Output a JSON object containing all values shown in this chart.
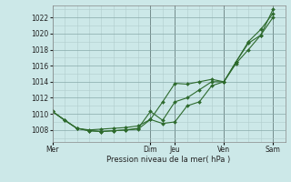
{
  "background_color": "#cce8e8",
  "grid_color_minor": "#b0cccc",
  "grid_color_major": "#88aaaa",
  "line_color": "#2d6a2d",
  "xlabel": "Pression niveau de la mer( hPa )",
  "ylim": [
    1006.5,
    1023.5
  ],
  "yticks": [
    1008,
    1010,
    1012,
    1014,
    1016,
    1018,
    1020,
    1022
  ],
  "x_day_labels": [
    "Mer",
    "Dim",
    "Jeu",
    "Ven",
    "Sam"
  ],
  "x_day_positions": [
    0,
    8,
    10,
    14,
    18
  ],
  "xlim": [
    0,
    19
  ],
  "dark_vlines": [
    8,
    10,
    14,
    18
  ],
  "series1_x": [
    0,
    1,
    2,
    3,
    4,
    5,
    6,
    7,
    8,
    9,
    10,
    11,
    12,
    13,
    14,
    15,
    16,
    17,
    18
  ],
  "series1_y": [
    1010.3,
    1009.2,
    1008.2,
    1007.9,
    1007.8,
    1007.9,
    1008.0,
    1008.1,
    1009.3,
    1008.8,
    1009.0,
    1011.0,
    1011.5,
    1013.5,
    1014.0,
    1016.5,
    1018.8,
    1019.8,
    1023.0
  ],
  "series2_x": [
    0,
    1,
    2,
    3,
    4,
    5,
    6,
    7,
    8,
    9,
    10,
    11,
    12,
    13,
    14,
    15,
    16,
    17,
    18
  ],
  "series2_y": [
    1010.3,
    1009.2,
    1008.2,
    1007.9,
    1007.8,
    1007.9,
    1008.0,
    1008.2,
    1010.3,
    1009.2,
    1011.5,
    1012.0,
    1013.0,
    1014.0,
    1014.0,
    1016.5,
    1019.0,
    1020.5,
    1022.5
  ],
  "series3_x": [
    0,
    2,
    3,
    4,
    5,
    6,
    7,
    8,
    9,
    10,
    11,
    12,
    13,
    14,
    15,
    16,
    17,
    18
  ],
  "series3_y": [
    1010.3,
    1008.2,
    1008.0,
    1008.1,
    1008.2,
    1008.3,
    1008.5,
    1009.3,
    1011.5,
    1013.8,
    1013.7,
    1014.0,
    1014.3,
    1014.0,
    1016.3,
    1018.0,
    1019.8,
    1022.0
  ]
}
